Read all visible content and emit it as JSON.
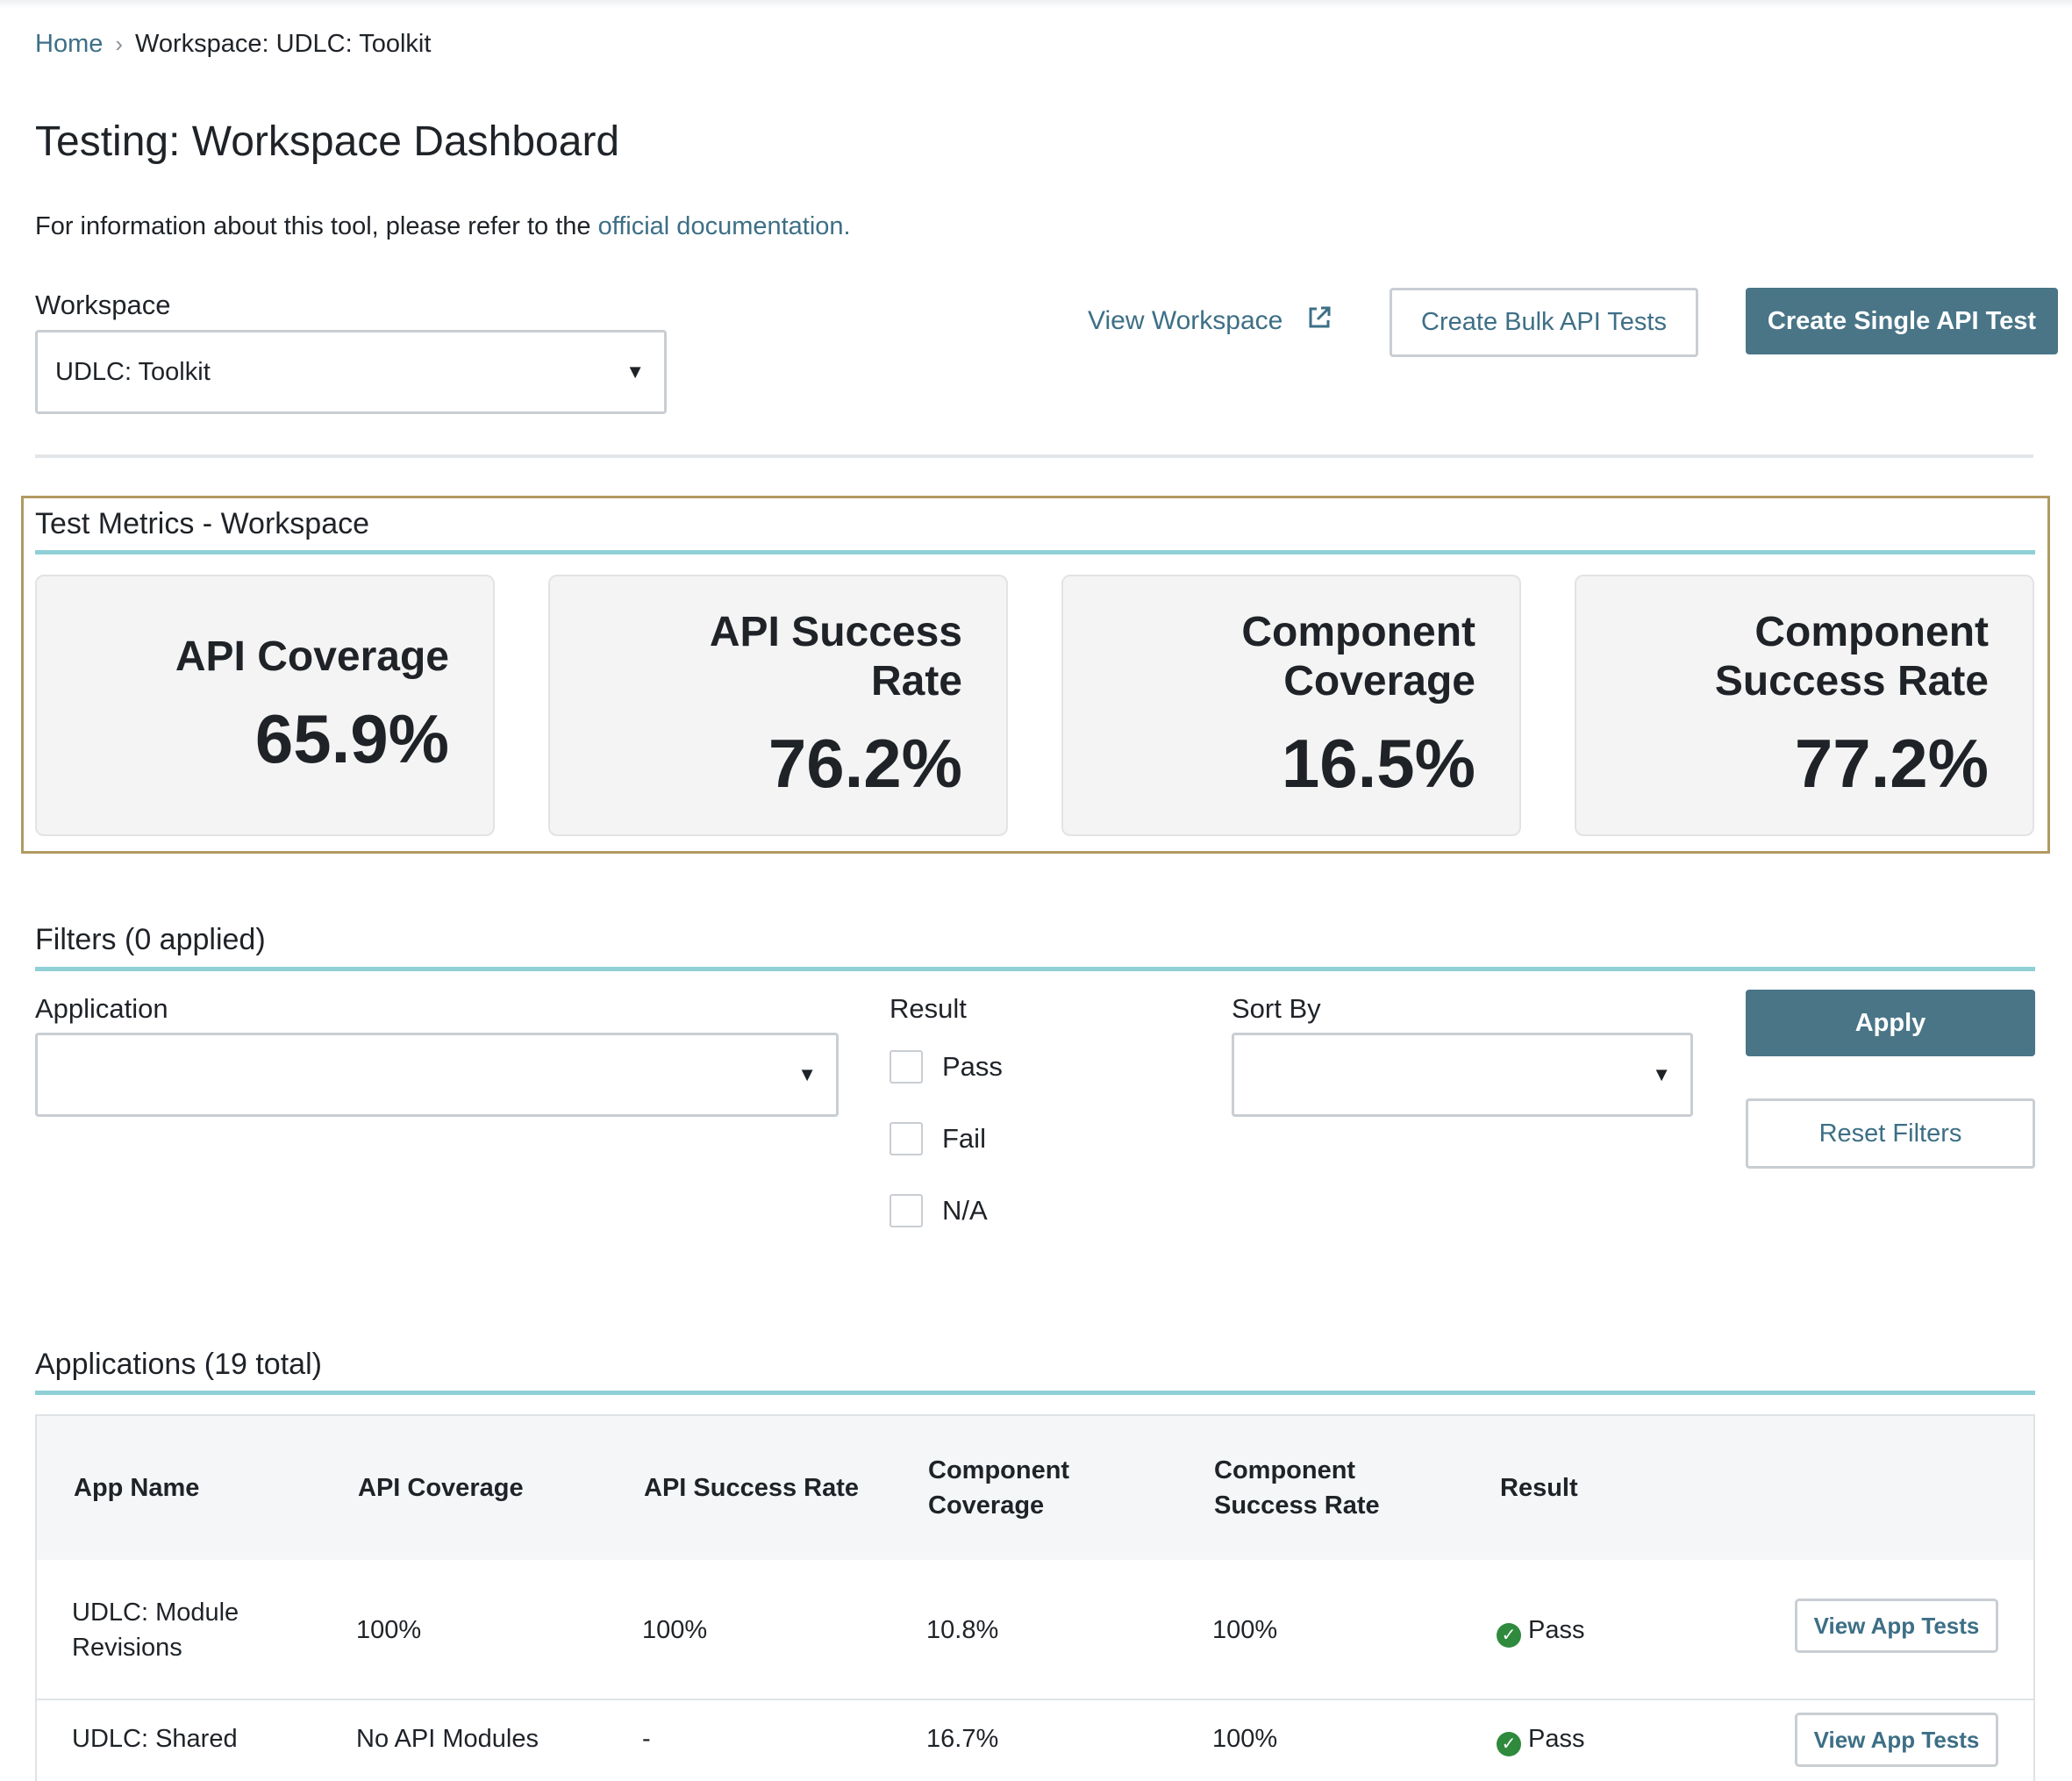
{
  "breadcrumb": {
    "home": "Home",
    "separator": "›",
    "current": "Workspace: UDLC: Toolkit"
  },
  "page": {
    "title": "Testing: Workspace Dashboard",
    "intro_text": "For information about this tool, please refer to the ",
    "intro_link": "official documentation."
  },
  "workspace": {
    "label": "Workspace",
    "selected": "UDLC: Toolkit"
  },
  "actions": {
    "view_workspace": "View Workspace",
    "create_bulk": "Create Bulk API Tests",
    "create_single": "Create Single API Test"
  },
  "metrics": {
    "title": "Test Metrics - Workspace",
    "cards": [
      {
        "label_line1": "API Coverage",
        "label_line2": "",
        "value": "65.9%"
      },
      {
        "label_line1": "API Success",
        "label_line2": "Rate",
        "value": "76.2%"
      },
      {
        "label_line1": "Component",
        "label_line2": "Coverage",
        "value": "16.5%"
      },
      {
        "label_line1": "Component",
        "label_line2": "Success Rate",
        "value": "77.2%"
      }
    ]
  },
  "filters": {
    "title": "Filters (0 applied)",
    "application_label": "Application",
    "application_value": "",
    "result_label": "Result",
    "result_options": [
      "Pass",
      "Fail",
      "N/A"
    ],
    "sort_label": "Sort By",
    "sort_value": "",
    "apply": "Apply",
    "reset": "Reset Filters"
  },
  "applications": {
    "title": "Applications (19 total)",
    "columns": [
      {
        "line1": "App Name",
        "line2": ""
      },
      {
        "line1": "API Coverage",
        "line2": ""
      },
      {
        "line1": "API Success Rate",
        "line2": ""
      },
      {
        "line1": "Component",
        "line2": "Coverage"
      },
      {
        "line1": "Component",
        "line2": "Success Rate"
      },
      {
        "line1": "Result",
        "line2": ""
      }
    ],
    "rows": [
      {
        "name_line1": "UDLC: Module",
        "name_line2": "Revisions",
        "api_coverage": "100%",
        "api_success": "100%",
        "comp_coverage": "10.8%",
        "comp_success": "100%",
        "result": "Pass",
        "action": "View App Tests"
      },
      {
        "name_line1": "UDLC: Shared",
        "name_line2": "",
        "api_coverage": "No API Modules",
        "api_success": "-",
        "comp_coverage": "16.7%",
        "comp_success": "100%",
        "result": "Pass",
        "action": "View App Tests"
      }
    ]
  },
  "colors": {
    "accent": "#497587",
    "link": "#3d6f86",
    "teal_rule": "#8fd0d6",
    "frame": "#b19a62",
    "pass": "#2f8a3d"
  }
}
